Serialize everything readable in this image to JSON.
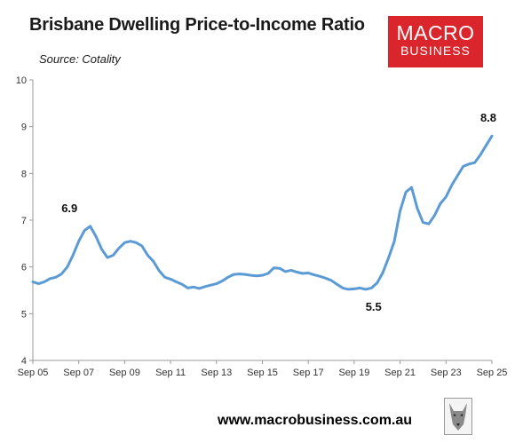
{
  "header": {
    "title": "Brisbane Dwelling Price-to-Income Ratio",
    "subtitle": "Source: Cotality"
  },
  "logo": {
    "line1": "MACRO",
    "line2": "BUSINESS",
    "color": "#d9252b"
  },
  "footer": {
    "url": "www.macrobusiness.com.au"
  },
  "chart_data": {
    "type": "line",
    "title": "Brisbane Dwelling Price-to-Income Ratio",
    "xlabel": "",
    "ylabel": "",
    "ylim": [
      4,
      10
    ],
    "yticks": [
      "4",
      "5",
      "6",
      "7",
      "8",
      "9",
      "10"
    ],
    "xticks": [
      "Sep 05",
      "Sep 07",
      "Sep 09",
      "Sep 11",
      "Sep 13",
      "Sep 15",
      "Sep 17",
      "Sep 19",
      "Sep 21",
      "Sep 23",
      "Sep 25"
    ],
    "xrange": [
      2005.67,
      2025.67
    ],
    "grid": false,
    "line_color": "#5b9bd5",
    "series": [
      {
        "x": [
          2005.67,
          2005.92,
          2006.17,
          2006.42,
          2006.67,
          2006.92,
          2007.17,
          2007.42,
          2007.67,
          2007.92,
          2008.17,
          2008.42,
          2008.67,
          2008.92,
          2009.17,
          2009.42,
          2009.67,
          2009.92,
          2010.17,
          2010.42,
          2010.67,
          2010.92,
          2011.17,
          2011.42,
          2011.67,
          2011.92,
          2012.17,
          2012.42,
          2012.67,
          2012.92,
          2013.17,
          2013.42,
          2013.67,
          2013.92,
          2014.17,
          2014.42,
          2014.67,
          2014.92,
          2015.17,
          2015.42,
          2015.67,
          2015.92,
          2016.17,
          2016.42,
          2016.67,
          2016.92,
          2017.17,
          2017.42,
          2017.67,
          2017.92,
          2018.17,
          2018.42,
          2018.67,
          2018.92,
          2019.17,
          2019.42,
          2019.67,
          2019.92,
          2020.17,
          2020.42,
          2020.67,
          2020.92,
          2021.17,
          2021.42,
          2021.67,
          2021.92,
          2022.17,
          2022.42,
          2022.67,
          2022.92,
          2023.17,
          2023.42,
          2023.67,
          2023.92,
          2024.17,
          2024.42,
          2024.67,
          2024.92,
          2025.17,
          2025.42,
          2025.67
        ],
        "values": [
          5.68,
          5.64,
          5.68,
          5.75,
          5.78,
          5.85,
          6.0,
          6.25,
          6.55,
          6.78,
          6.87,
          6.65,
          6.38,
          6.2,
          6.25,
          6.4,
          6.52,
          6.55,
          6.52,
          6.45,
          6.25,
          6.12,
          5.92,
          5.78,
          5.74,
          5.68,
          5.63,
          5.55,
          5.57,
          5.54,
          5.58,
          5.61,
          5.64,
          5.7,
          5.78,
          5.84,
          5.85,
          5.84,
          5.82,
          5.81,
          5.82,
          5.86,
          5.98,
          5.97,
          5.9,
          5.93,
          5.89,
          5.86,
          5.87,
          5.83,
          5.8,
          5.76,
          5.71,
          5.63,
          5.55,
          5.52,
          5.53,
          5.55,
          5.52,
          5.55,
          5.66,
          5.88,
          6.2,
          6.55,
          7.2,
          7.6,
          7.7,
          7.25,
          6.95,
          6.92,
          7.1,
          7.35,
          7.5,
          7.75,
          7.95,
          8.15,
          8.2,
          8.23,
          8.4,
          8.6,
          8.8
        ]
      }
    ],
    "annotations": [
      {
        "text": "6.9",
        "x": 2007.42,
        "y": 6.87,
        "placement": "above"
      },
      {
        "text": "5.5",
        "x": 2020.67,
        "y": 5.52,
        "placement": "below"
      },
      {
        "text": "8.8",
        "x": 2025.67,
        "y": 8.8,
        "placement": "above"
      }
    ]
  }
}
